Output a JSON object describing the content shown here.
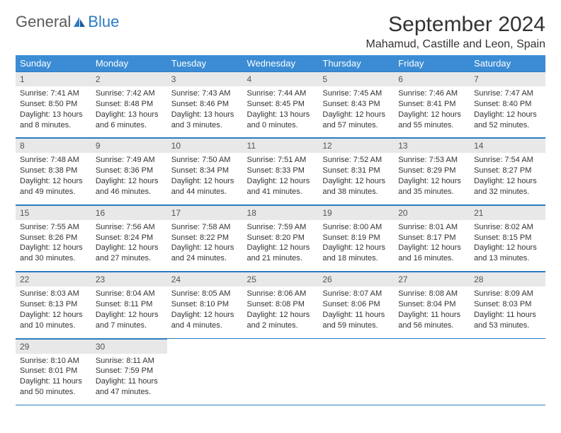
{
  "logo": {
    "word1": "General",
    "word2": "Blue"
  },
  "title": "September 2024",
  "location": "Mahamud, Castille and Leon, Spain",
  "colors": {
    "header_bg": "#3b8cd4",
    "accent": "#2b7cc4",
    "daynum_bg": "#e8e8e8",
    "text": "#333333"
  },
  "weekdays": [
    "Sunday",
    "Monday",
    "Tuesday",
    "Wednesday",
    "Thursday",
    "Friday",
    "Saturday"
  ],
  "days": [
    {
      "n": "1",
      "sr": "7:41 AM",
      "ss": "8:50 PM",
      "dl": "13 hours and 8 minutes."
    },
    {
      "n": "2",
      "sr": "7:42 AM",
      "ss": "8:48 PM",
      "dl": "13 hours and 6 minutes."
    },
    {
      "n": "3",
      "sr": "7:43 AM",
      "ss": "8:46 PM",
      "dl": "13 hours and 3 minutes."
    },
    {
      "n": "4",
      "sr": "7:44 AM",
      "ss": "8:45 PM",
      "dl": "13 hours and 0 minutes."
    },
    {
      "n": "5",
      "sr": "7:45 AM",
      "ss": "8:43 PM",
      "dl": "12 hours and 57 minutes."
    },
    {
      "n": "6",
      "sr": "7:46 AM",
      "ss": "8:41 PM",
      "dl": "12 hours and 55 minutes."
    },
    {
      "n": "7",
      "sr": "7:47 AM",
      "ss": "8:40 PM",
      "dl": "12 hours and 52 minutes."
    },
    {
      "n": "8",
      "sr": "7:48 AM",
      "ss": "8:38 PM",
      "dl": "12 hours and 49 minutes."
    },
    {
      "n": "9",
      "sr": "7:49 AM",
      "ss": "8:36 PM",
      "dl": "12 hours and 46 minutes."
    },
    {
      "n": "10",
      "sr": "7:50 AM",
      "ss": "8:34 PM",
      "dl": "12 hours and 44 minutes."
    },
    {
      "n": "11",
      "sr": "7:51 AM",
      "ss": "8:33 PM",
      "dl": "12 hours and 41 minutes."
    },
    {
      "n": "12",
      "sr": "7:52 AM",
      "ss": "8:31 PM",
      "dl": "12 hours and 38 minutes."
    },
    {
      "n": "13",
      "sr": "7:53 AM",
      "ss": "8:29 PM",
      "dl": "12 hours and 35 minutes."
    },
    {
      "n": "14",
      "sr": "7:54 AM",
      "ss": "8:27 PM",
      "dl": "12 hours and 32 minutes."
    },
    {
      "n": "15",
      "sr": "7:55 AM",
      "ss": "8:26 PM",
      "dl": "12 hours and 30 minutes."
    },
    {
      "n": "16",
      "sr": "7:56 AM",
      "ss": "8:24 PM",
      "dl": "12 hours and 27 minutes."
    },
    {
      "n": "17",
      "sr": "7:58 AM",
      "ss": "8:22 PM",
      "dl": "12 hours and 24 minutes."
    },
    {
      "n": "18",
      "sr": "7:59 AM",
      "ss": "8:20 PM",
      "dl": "12 hours and 21 minutes."
    },
    {
      "n": "19",
      "sr": "8:00 AM",
      "ss": "8:19 PM",
      "dl": "12 hours and 18 minutes."
    },
    {
      "n": "20",
      "sr": "8:01 AM",
      "ss": "8:17 PM",
      "dl": "12 hours and 16 minutes."
    },
    {
      "n": "21",
      "sr": "8:02 AM",
      "ss": "8:15 PM",
      "dl": "12 hours and 13 minutes."
    },
    {
      "n": "22",
      "sr": "8:03 AM",
      "ss": "8:13 PM",
      "dl": "12 hours and 10 minutes."
    },
    {
      "n": "23",
      "sr": "8:04 AM",
      "ss": "8:11 PM",
      "dl": "12 hours and 7 minutes."
    },
    {
      "n": "24",
      "sr": "8:05 AM",
      "ss": "8:10 PM",
      "dl": "12 hours and 4 minutes."
    },
    {
      "n": "25",
      "sr": "8:06 AM",
      "ss": "8:08 PM",
      "dl": "12 hours and 2 minutes."
    },
    {
      "n": "26",
      "sr": "8:07 AM",
      "ss": "8:06 PM",
      "dl": "11 hours and 59 minutes."
    },
    {
      "n": "27",
      "sr": "8:08 AM",
      "ss": "8:04 PM",
      "dl": "11 hours and 56 minutes."
    },
    {
      "n": "28",
      "sr": "8:09 AM",
      "ss": "8:03 PM",
      "dl": "11 hours and 53 minutes."
    },
    {
      "n": "29",
      "sr": "8:10 AM",
      "ss": "8:01 PM",
      "dl": "11 hours and 50 minutes."
    },
    {
      "n": "30",
      "sr": "8:11 AM",
      "ss": "7:59 PM",
      "dl": "11 hours and 47 minutes."
    }
  ],
  "labels": {
    "sunrise": "Sunrise:",
    "sunset": "Sunset:",
    "daylight": "Daylight:"
  },
  "calendar": {
    "first_day_offset": 0,
    "total_cells": 35
  }
}
